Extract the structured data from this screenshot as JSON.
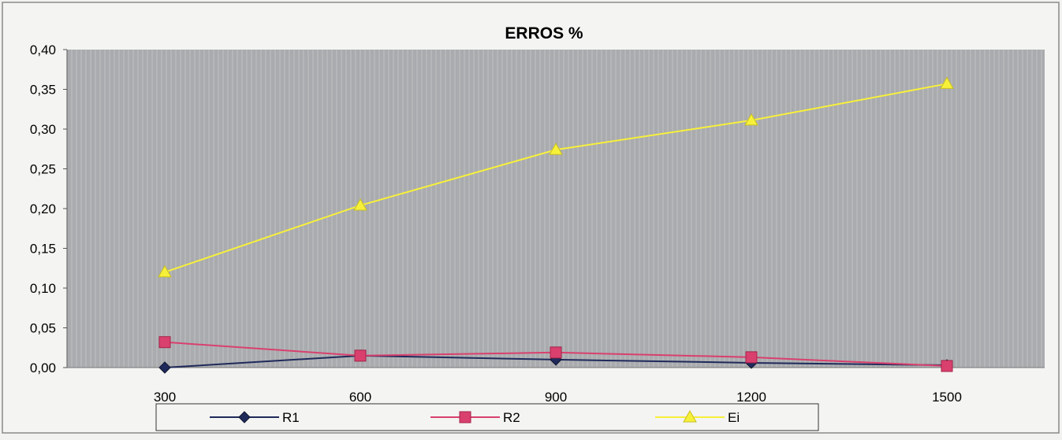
{
  "chart_data": {
    "type": "line",
    "title": "ERROS %",
    "categories": [
      "300",
      "600",
      "900",
      "1200",
      "1500"
    ],
    "ylim": [
      0,
      0.4
    ],
    "yticks": [
      "0,00",
      "0,05",
      "0,10",
      "0,15",
      "0,20",
      "0,25",
      "0,30",
      "0,35",
      "0,40"
    ],
    "grid": false,
    "legend_position": "bottom",
    "series": [
      {
        "name": "R1",
        "values": [
          0.0,
          0.015,
          0.01,
          0.006,
          0.003
        ],
        "color": "#1f2a5a",
        "marker": "diamond"
      },
      {
        "name": "R2",
        "values": [
          0.032,
          0.015,
          0.019,
          0.013,
          0.002
        ],
        "color": "#d9406e",
        "marker": "square"
      },
      {
        "name": "Ei",
        "values": [
          0.12,
          0.204,
          0.274,
          0.311,
          0.357
        ],
        "color": "#f7f03a",
        "marker": "triangle"
      }
    ]
  }
}
